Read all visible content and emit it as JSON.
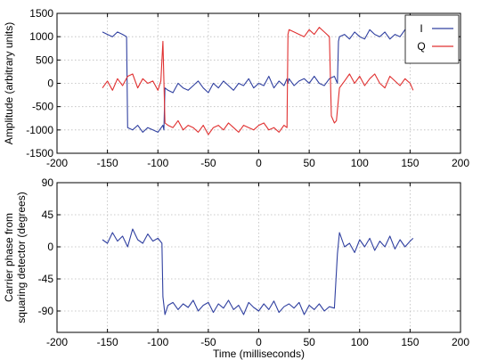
{
  "chart_data": [
    {
      "type": "line",
      "title": "",
      "xlabel": "",
      "ylabel": "Amplitude (arbitrary units)",
      "xlim": [
        -200,
        200
      ],
      "ylim": [
        -1500,
        1500
      ],
      "xticks": [
        -200,
        -150,
        -100,
        -50,
        0,
        50,
        100,
        150,
        200
      ],
      "xtick_labels": [
        "-200",
        "-150",
        "-100",
        "-50",
        "0",
        "50",
        "100",
        "150",
        "200"
      ],
      "yticks": [
        -1500,
        -1000,
        -500,
        0,
        500,
        1000,
        1500
      ],
      "ytick_labels": [
        "-1500",
        "-1000",
        "-500",
        "0",
        "500",
        "1000",
        "1500"
      ],
      "grid": true,
      "legend": "top-right",
      "series": [
        {
          "name": "I",
          "color": "#3040a0",
          "x": [
            -155,
            -150,
            -145,
            -140,
            -135,
            -131,
            -130,
            -125,
            -120,
            -115,
            -110,
            -105,
            -100,
            -95,
            -94,
            -93,
            -90,
            -85,
            -80,
            -75,
            -70,
            -65,
            -60,
            -55,
            -50,
            -45,
            -40,
            -35,
            -30,
            -25,
            -20,
            -15,
            -10,
            -5,
            0,
            5,
            10,
            15,
            20,
            25,
            28,
            29,
            30,
            35,
            40,
            45,
            50,
            55,
            60,
            65,
            70,
            75,
            78,
            79,
            80,
            85,
            90,
            95,
            100,
            105,
            110,
            115,
            120,
            125,
            130,
            135,
            140,
            145,
            150,
            153
          ],
          "y": [
            1100,
            1050,
            1000,
            1100,
            1050,
            1000,
            -950,
            -1000,
            -900,
            -1050,
            -950,
            -1000,
            -1050,
            -900,
            -1000,
            -100,
            -150,
            -200,
            0,
            -100,
            -150,
            -50,
            50,
            -100,
            -200,
            0,
            -100,
            50,
            -50,
            -150,
            0,
            -50,
            100,
            -100,
            0,
            -50,
            150,
            -100,
            50,
            -50,
            100,
            0,
            100,
            -50,
            50,
            100,
            0,
            150,
            0,
            -50,
            100,
            150,
            0,
            900,
            1000,
            1050,
            950,
            1100,
            1000,
            950,
            1150,
            1050,
            1000,
            1100,
            950,
            1050,
            1000,
            1150,
            1100,
            1200
          ]
        },
        {
          "name": "Q",
          "color": "#e03030",
          "x": [
            -155,
            -150,
            -145,
            -140,
            -135,
            -130,
            -125,
            -120,
            -115,
            -110,
            -105,
            -100,
            -97,
            -95,
            -93,
            -90,
            -85,
            -80,
            -75,
            -70,
            -65,
            -60,
            -55,
            -50,
            -45,
            -40,
            -35,
            -30,
            -25,
            -20,
            -15,
            -10,
            -5,
            0,
            5,
            10,
            15,
            20,
            25,
            28,
            29,
            30,
            35,
            40,
            45,
            50,
            55,
            60,
            65,
            70,
            72,
            75,
            77,
            80,
            85,
            90,
            95,
            100,
            105,
            110,
            115,
            120,
            125,
            130,
            135,
            140,
            145,
            150,
            153
          ],
          "y": [
            -100,
            50,
            -150,
            100,
            -50,
            150,
            200,
            -100,
            100,
            0,
            50,
            -150,
            50,
            900,
            -850,
            -900,
            -950,
            -800,
            -1000,
            -900,
            -950,
            -1050,
            -900,
            -1100,
            -950,
            -900,
            -1000,
            -850,
            -950,
            -1050,
            -900,
            -950,
            -1000,
            -900,
            -850,
            -1000,
            -950,
            -1050,
            -900,
            -950,
            1050,
            1150,
            1100,
            1050,
            1000,
            1150,
            1050,
            1200,
            1100,
            1000,
            -700,
            -850,
            -800,
            -100,
            50,
            200,
            0,
            150,
            -50,
            100,
            200,
            0,
            -100,
            150,
            50,
            -50,
            100,
            0,
            -150
          ]
        }
      ]
    },
    {
      "type": "line",
      "title": "",
      "xlabel": "Time (milliseconds)",
      "ylabel_lines": [
        "Carrier phase from",
        "squaring detector (degrees)"
      ],
      "xlim": [
        -200,
        200
      ],
      "ylim": [
        -120,
        90
      ],
      "xticks": [
        -200,
        -150,
        -100,
        -50,
        0,
        50,
        100,
        150,
        200
      ],
      "xtick_labels": [
        "-200",
        "-150",
        "-100",
        "-50",
        "0",
        "50",
        "100",
        "150",
        "200"
      ],
      "yticks": [
        -90,
        -45,
        0,
        45,
        90
      ],
      "ytick_labels": [
        "-90",
        "-45",
        "0",
        "45",
        "90"
      ],
      "grid": true,
      "series": [
        {
          "color": "#3040a0",
          "x": [
            -155,
            -150,
            -145,
            -140,
            -135,
            -130,
            -125,
            -120,
            -115,
            -110,
            -105,
            -100,
            -96,
            -95,
            -93,
            -90,
            -85,
            -80,
            -75,
            -70,
            -65,
            -60,
            -55,
            -50,
            -45,
            -40,
            -35,
            -30,
            -25,
            -20,
            -15,
            -10,
            -5,
            0,
            5,
            10,
            15,
            20,
            25,
            30,
            35,
            40,
            45,
            50,
            55,
            60,
            65,
            70,
            75,
            78,
            80,
            85,
            90,
            95,
            100,
            105,
            110,
            115,
            120,
            125,
            130,
            135,
            140,
            145,
            150,
            153
          ],
          "y": [
            10,
            5,
            20,
            8,
            15,
            0,
            25,
            10,
            5,
            18,
            8,
            12,
            5,
            -70,
            -95,
            -82,
            -78,
            -88,
            -80,
            -85,
            -75,
            -90,
            -82,
            -78,
            -92,
            -80,
            -86,
            -75,
            -88,
            -82,
            -95,
            -78,
            -85,
            -90,
            -80,
            -88,
            -76,
            -92,
            -84,
            -80,
            -86,
            -78,
            -95,
            -82,
            -88,
            -80,
            -90,
            -84,
            -86,
            -10,
            20,
            0,
            5,
            -8,
            10,
            0,
            12,
            -5,
            8,
            0,
            15,
            -3,
            10,
            0,
            8,
            12
          ]
        }
      ]
    }
  ]
}
